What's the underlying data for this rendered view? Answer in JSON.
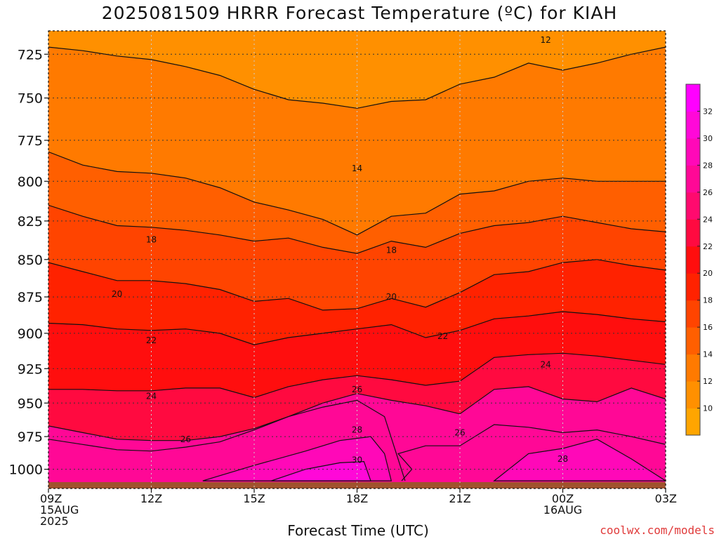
{
  "chart_data": {
    "type": "heatmap",
    "title": "2025081509 HRRR Forecast Temperature (ºC) for KIAH",
    "xlabel": "Forecast Time (UTC)",
    "ylabel": "",
    "x_ticks": [
      {
        "h": 0,
        "lines": [
          "09Z",
          "15AUG",
          "2025"
        ]
      },
      {
        "h": 3,
        "lines": [
          "12Z"
        ]
      },
      {
        "h": 6,
        "lines": [
          "15Z"
        ]
      },
      {
        "h": 9,
        "lines": [
          "18Z"
        ]
      },
      {
        "h": 12,
        "lines": [
          "21Z"
        ]
      },
      {
        "h": 15,
        "lines": [
          "00Z",
          "16AUG"
        ]
      },
      {
        "h": 18,
        "lines": [
          "03Z"
        ]
      }
    ],
    "xlim": [
      0,
      18
    ],
    "y_ticks": [
      725,
      750,
      775,
      800,
      825,
      850,
      875,
      900,
      925,
      950,
      975,
      1000
    ],
    "ylim": [
      1015,
      712
    ],
    "yscale": "log",
    "colorbar": {
      "levels": [
        8,
        10,
        12,
        14,
        16,
        18,
        20,
        22,
        24,
        26,
        28,
        30,
        32,
        34
      ],
      "labels": [
        "10",
        "12",
        "14",
        "16",
        "18",
        "20",
        "22",
        "24",
        "26",
        "28",
        "30",
        "32"
      ],
      "colors": [
        "#ffa500",
        "#ff9000",
        "#ff7a00",
        "#ff5f00",
        "#ff4400",
        "#ff2200",
        "#ff0e0e",
        "#ff0a40",
        "#ff0a6e",
        "#ff0896",
        "#ff08b8",
        "#ff08d8",
        "#ff00ff"
      ]
    },
    "ground_color": "#a0522d",
    "ground_top_pressure": 1010,
    "contours": [
      {
        "level": 12,
        "points": [
          [
            0,
            721
          ],
          [
            1,
            723
          ],
          [
            2,
            726
          ],
          [
            3,
            728
          ],
          [
            4,
            732
          ],
          [
            5,
            737
          ],
          [
            6,
            745
          ],
          [
            7,
            751
          ],
          [
            8,
            753
          ],
          [
            9,
            756
          ],
          [
            10,
            752
          ],
          [
            11,
            751
          ],
          [
            12,
            742
          ],
          [
            13,
            738
          ],
          [
            14,
            730
          ],
          [
            15,
            734
          ],
          [
            16,
            730
          ],
          [
            17,
            725
          ],
          [
            18,
            721
          ]
        ],
        "labels": [
          [
            14.5,
            717
          ]
        ]
      },
      {
        "level": 14,
        "points": [
          [
            0,
            782
          ],
          [
            1,
            790
          ],
          [
            2,
            794
          ],
          [
            3,
            795
          ],
          [
            4,
            798
          ],
          [
            5,
            804
          ],
          [
            6,
            813
          ],
          [
            7,
            818
          ],
          [
            8,
            824
          ],
          [
            9,
            834
          ],
          [
            10,
            822
          ],
          [
            11,
            820
          ],
          [
            12,
            808
          ],
          [
            13,
            806
          ],
          [
            14,
            800
          ],
          [
            15,
            798
          ],
          [
            16,
            800
          ],
          [
            17,
            800
          ],
          [
            18,
            800
          ]
        ],
        "labels": [
          [
            9,
            792
          ]
        ]
      },
      {
        "level": 16,
        "points": [
          [
            0,
            815
          ],
          [
            1,
            822
          ],
          [
            2,
            828
          ],
          [
            3,
            829
          ],
          [
            4,
            831
          ],
          [
            5,
            834
          ],
          [
            6,
            838
          ],
          [
            7,
            836
          ],
          [
            8,
            842
          ],
          [
            9,
            846
          ],
          [
            10,
            838
          ],
          [
            11,
            842
          ],
          [
            12,
            833
          ],
          [
            13,
            828
          ],
          [
            14,
            826
          ],
          [
            15,
            822
          ],
          [
            16,
            826
          ],
          [
            17,
            830
          ],
          [
            18,
            832
          ]
        ],
        "labels": []
      },
      {
        "level": 18,
        "points": [
          [
            0,
            852
          ],
          [
            1,
            858
          ],
          [
            2,
            864
          ],
          [
            3,
            864
          ],
          [
            4,
            866
          ],
          [
            5,
            870
          ],
          [
            6,
            878
          ],
          [
            7,
            876
          ],
          [
            8,
            884
          ],
          [
            9,
            883
          ],
          [
            10,
            876
          ],
          [
            11,
            882
          ],
          [
            12,
            872
          ],
          [
            13,
            860
          ],
          [
            14,
            858
          ],
          [
            15,
            852
          ],
          [
            16,
            850
          ],
          [
            17,
            854
          ],
          [
            18,
            857
          ]
        ],
        "labels": [
          [
            3,
            837
          ],
          [
            10,
            844
          ]
        ]
      },
      {
        "level": 20,
        "points": [
          [
            0,
            893
          ],
          [
            1,
            894
          ],
          [
            2,
            897
          ],
          [
            3,
            898
          ],
          [
            4,
            897
          ],
          [
            5,
            900
          ],
          [
            6,
            908
          ],
          [
            7,
            903
          ],
          [
            8,
            900
          ],
          [
            9,
            897
          ],
          [
            10,
            894
          ],
          [
            11,
            903
          ],
          [
            12,
            898
          ],
          [
            13,
            890
          ],
          [
            14,
            888
          ],
          [
            15,
            885
          ],
          [
            16,
            887
          ],
          [
            17,
            890
          ],
          [
            18,
            892
          ]
        ],
        "labels": [
          [
            2,
            873
          ],
          [
            10,
            875
          ]
        ]
      },
      {
        "level": 22,
        "points": [
          [
            0,
            940
          ],
          [
            1,
            940
          ],
          [
            2,
            941
          ],
          [
            3,
            941
          ],
          [
            4,
            939
          ],
          [
            5,
            939
          ],
          [
            6,
            946
          ],
          [
            7,
            938
          ],
          [
            8,
            933
          ],
          [
            9,
            930
          ],
          [
            10,
            933
          ],
          [
            11,
            937
          ],
          [
            12,
            934
          ],
          [
            13,
            917
          ],
          [
            14,
            915
          ],
          [
            15,
            914
          ],
          [
            16,
            916
          ],
          [
            17,
            919
          ],
          [
            18,
            922
          ]
        ],
        "labels": [
          [
            3,
            905
          ],
          [
            11.5,
            902
          ]
        ]
      },
      {
        "level": 24,
        "points": [
          [
            0,
            967
          ],
          [
            1,
            972
          ],
          [
            2,
            977
          ],
          [
            3,
            978
          ],
          [
            4,
            978
          ],
          [
            5,
            975
          ],
          [
            6,
            969
          ],
          [
            7,
            960
          ],
          [
            8,
            950
          ],
          [
            9,
            943
          ],
          [
            10,
            948
          ],
          [
            11,
            952
          ],
          [
            12,
            958
          ],
          [
            13,
            940
          ],
          [
            14,
            938
          ],
          [
            15,
            947
          ],
          [
            16,
            949
          ],
          [
            17,
            939
          ],
          [
            18,
            947
          ]
        ],
        "labels": [
          [
            3,
            945
          ],
          [
            14.5,
            922
          ]
        ]
      }
    ],
    "extra_labels": [
      {
        "text": "26",
        "h": 4,
        "p": 977
      },
      {
        "text": "26",
        "h": 9,
        "p": 940
      },
      {
        "text": "28",
        "h": 9,
        "p": 970
      },
      {
        "text": "30",
        "h": 9,
        "p": 993
      },
      {
        "text": "26",
        "h": 12,
        "p": 972
      },
      {
        "text": "28",
        "h": 15,
        "p": 992
      }
    ]
  },
  "footer": {
    "credit": "coolwx.com/models"
  }
}
